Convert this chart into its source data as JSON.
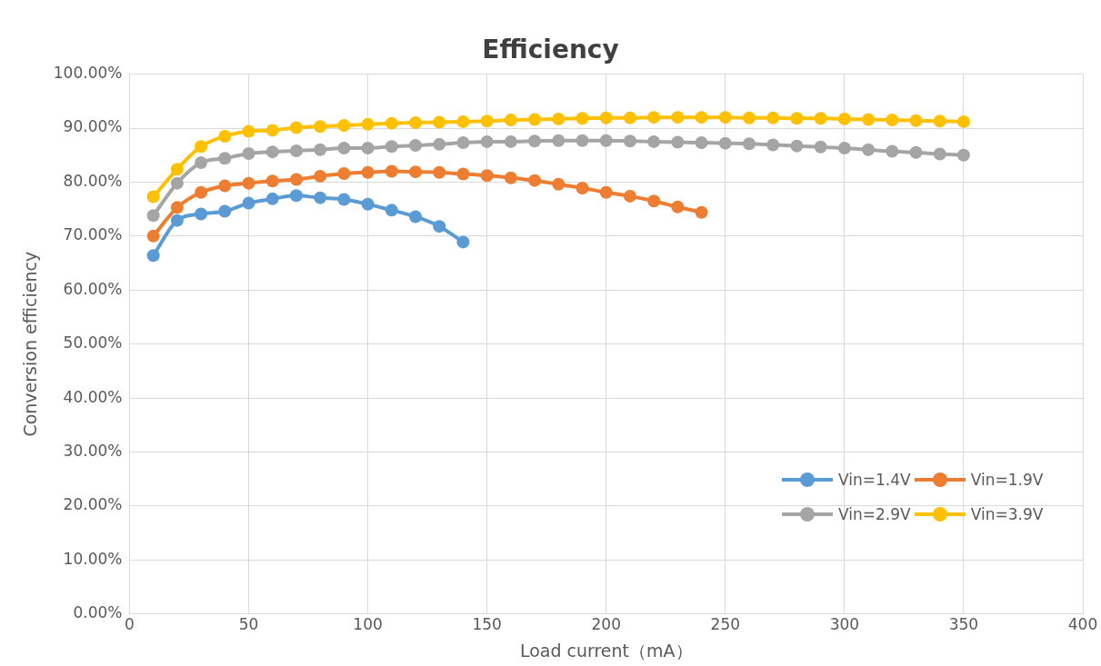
{
  "chart_data": {
    "type": "line",
    "title": "Efficiency",
    "xlabel": "Load current（mA）",
    "ylabel": "Conversion efficiency",
    "xlim": [
      0,
      400
    ],
    "xticks": [
      0,
      50,
      100,
      150,
      200,
      250,
      300,
      350,
      400
    ],
    "ylim": [
      0,
      100
    ],
    "yticks": [
      {
        "value": 0,
        "label": "0.00%"
      },
      {
        "value": 10,
        "label": "10.00%"
      },
      {
        "value": 20,
        "label": "20.00%"
      },
      {
        "value": 30,
        "label": "30.00%"
      },
      {
        "value": 40,
        "label": "40.00%"
      },
      {
        "value": 50,
        "label": "50.00%"
      },
      {
        "value": 60,
        "label": "60.00%"
      },
      {
        "value": 70,
        "label": "70.00%"
      },
      {
        "value": 80,
        "label": "80.00%"
      },
      {
        "value": 90,
        "label": "90.00%"
      },
      {
        "value": 100,
        "label": "100.00%"
      }
    ],
    "grid": true,
    "legend": "bottom right",
    "marker": "circle",
    "line_style": "solid",
    "series": [
      {
        "name": "Vin=1.4V",
        "color": "#5b9bd5",
        "x": [
          10,
          20,
          30,
          40,
          50,
          60,
          70,
          80,
          90,
          100,
          110,
          120,
          130,
          140
        ],
        "values": [
          66.4,
          72.9,
          74.1,
          74.6,
          76.1,
          76.9,
          77.5,
          77.1,
          76.8,
          75.9,
          74.8,
          73.6,
          71.8,
          68.9
        ]
      },
      {
        "name": "Vin=1.9V",
        "color": "#ed7d31",
        "x": [
          10,
          20,
          30,
          40,
          50,
          60,
          70,
          80,
          90,
          100,
          110,
          120,
          130,
          140,
          150,
          160,
          170,
          180,
          190,
          200,
          210,
          220,
          230,
          240
        ],
        "values": [
          70.0,
          75.3,
          78.1,
          79.3,
          79.8,
          80.2,
          80.5,
          81.1,
          81.6,
          81.8,
          82.0,
          81.9,
          81.8,
          81.5,
          81.2,
          80.8,
          80.3,
          79.6,
          78.9,
          78.1,
          77.4,
          76.5,
          75.4,
          74.4
        ]
      },
      {
        "name": "Vin=2.9V",
        "color": "#a5a5a5",
        "x": [
          10,
          20,
          30,
          40,
          50,
          60,
          70,
          80,
          90,
          100,
          110,
          120,
          130,
          140,
          150,
          160,
          170,
          180,
          190,
          200,
          210,
          220,
          230,
          240,
          250,
          260,
          270,
          280,
          290,
          300,
          310,
          320,
          330,
          340,
          350
        ],
        "values": [
          73.8,
          79.8,
          83.6,
          84.4,
          85.3,
          85.6,
          85.8,
          86.0,
          86.3,
          86.3,
          86.6,
          86.8,
          87.0,
          87.3,
          87.5,
          87.5,
          87.6,
          87.7,
          87.7,
          87.7,
          87.6,
          87.5,
          87.4,
          87.3,
          87.2,
          87.1,
          86.9,
          86.7,
          86.5,
          86.3,
          86.0,
          85.7,
          85.5,
          85.2,
          85.0
        ]
      },
      {
        "name": "Vin=3.9V",
        "color": "#ffc000",
        "x": [
          10,
          20,
          30,
          40,
          50,
          60,
          70,
          80,
          90,
          100,
          110,
          120,
          130,
          140,
          150,
          160,
          170,
          180,
          190,
          200,
          210,
          220,
          230,
          240,
          250,
          260,
          270,
          280,
          290,
          300,
          310,
          320,
          330,
          340,
          350
        ],
        "values": [
          77.3,
          82.4,
          86.6,
          88.5,
          89.4,
          89.6,
          90.1,
          90.3,
          90.5,
          90.7,
          90.9,
          91.0,
          91.1,
          91.2,
          91.3,
          91.5,
          91.6,
          91.7,
          91.8,
          91.9,
          91.9,
          92.0,
          92.0,
          92.0,
          92.0,
          91.9,
          91.9,
          91.8,
          91.8,
          91.7,
          91.6,
          91.5,
          91.4,
          91.3,
          91.2
        ]
      }
    ]
  }
}
